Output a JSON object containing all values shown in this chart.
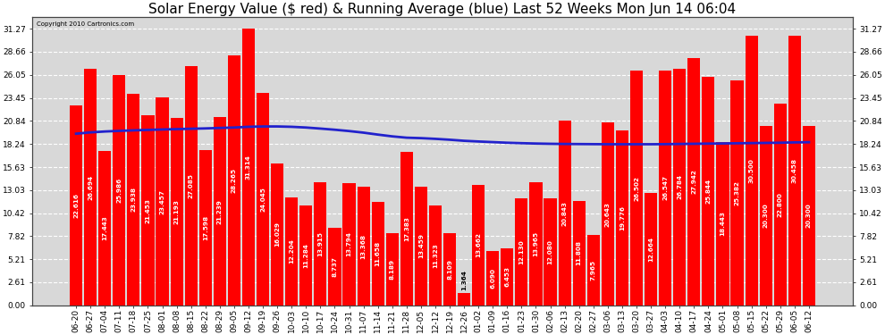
{
  "title": "Solar Energy Value ($ red) & Running Average (blue) Last 52 Weeks Mon Jun 14 06:04",
  "copyright": "Copyright 2010 Cartronics.com",
  "categories": [
    "06-20",
    "06-27",
    "07-04",
    "07-11",
    "07-18",
    "07-25",
    "08-01",
    "08-08",
    "08-15",
    "08-22",
    "08-29",
    "09-05",
    "09-12",
    "09-19",
    "09-26",
    "10-03",
    "10-10",
    "10-17",
    "10-24",
    "10-31",
    "11-07",
    "11-14",
    "11-21",
    "11-28",
    "12-05",
    "12-12",
    "12-19",
    "12-26",
    "01-02",
    "01-09",
    "01-16",
    "01-23",
    "01-30",
    "02-06",
    "02-13",
    "02-20",
    "02-27",
    "03-06",
    "03-13",
    "03-20",
    "03-27",
    "04-03",
    "04-10",
    "04-17",
    "04-24",
    "05-01",
    "05-08",
    "05-15",
    "05-22",
    "05-29",
    "06-05",
    "06-12"
  ],
  "values": [
    22.616,
    26.694,
    17.443,
    25.986,
    23.938,
    21.453,
    23.457,
    21.193,
    27.085,
    17.598,
    21.239,
    28.265,
    31.314,
    24.045,
    16.029,
    12.204,
    11.284,
    13.915,
    8.737,
    13.794,
    13.368,
    11.658,
    8.189,
    17.383,
    13.459,
    11.323,
    8.109,
    1.364,
    13.662,
    6.09,
    6.453,
    12.13,
    13.965,
    12.08,
    20.843,
    11.808,
    7.965,
    20.643,
    19.776,
    26.502,
    12.664,
    26.547,
    26.784,
    27.942,
    25.844,
    18.443,
    25.382,
    30.5,
    20.3,
    22.8,
    30.458,
    20.3
  ],
  "running_avg": [
    19.4,
    19.55,
    19.65,
    19.72,
    19.78,
    19.83,
    19.88,
    19.92,
    19.96,
    20.0,
    20.05,
    20.1,
    20.18,
    20.22,
    20.22,
    20.18,
    20.1,
    19.98,
    19.85,
    19.7,
    19.52,
    19.3,
    19.1,
    18.95,
    18.9,
    18.82,
    18.72,
    18.6,
    18.52,
    18.45,
    18.38,
    18.33,
    18.29,
    18.26,
    18.24,
    18.23,
    18.22,
    18.21,
    18.21,
    18.21,
    18.21,
    18.22,
    18.24,
    18.26,
    18.28,
    18.3,
    18.32,
    18.34,
    18.36,
    18.38,
    18.42,
    18.44
  ],
  "bar_color": "#ff0000",
  "line_color": "#2222cc",
  "background_color": "#ffffff",
  "plot_bg_color": "#d8d8d8",
  "grid_color": "#ffffff",
  "yticks": [
    0.0,
    2.61,
    5.21,
    7.82,
    10.42,
    13.03,
    15.63,
    18.24,
    20.84,
    23.45,
    26.05,
    28.66,
    31.27
  ],
  "ylim": [
    0.0,
    32.6
  ],
  "title_fontsize": 11,
  "label_fontsize": 5.2,
  "tick_fontsize": 6.5
}
